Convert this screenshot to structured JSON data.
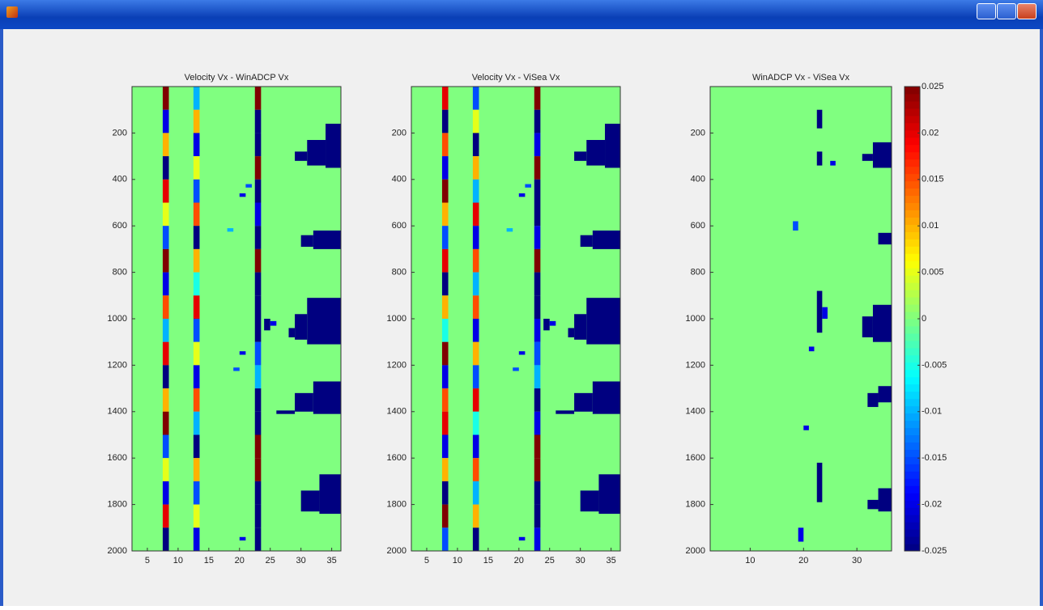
{
  "chart_data": [
    {
      "type": "heatmap",
      "title": "Velocity Vx - WinADCP Vx",
      "colormap": "jet",
      "background": 0,
      "xlim": [
        2.5,
        36.5
      ],
      "ylim": [
        0,
        2000
      ],
      "y_reversed": true,
      "xticks": [
        5,
        10,
        15,
        20,
        25,
        30,
        35
      ],
      "yticks": [
        200,
        400,
        600,
        800,
        1000,
        1200,
        1400,
        1600,
        1800,
        2000
      ],
      "stripes": [
        {
          "x": 8,
          "values": [
            0.025,
            -0.02,
            0.01,
            -0.025,
            0.02,
            0.005,
            -0.015,
            0.025,
            -0.02,
            0.015,
            -0.01,
            0.02,
            -0.025,
            0.01,
            0.025,
            -0.015,
            0.005,
            -0.02,
            0.02,
            -0.025
          ]
        },
        {
          "x": 13,
          "values": [
            -0.01,
            0.01,
            -0.02,
            0.005,
            -0.015,
            0.015,
            -0.025,
            0.01,
            -0.005,
            0.02,
            -0.015,
            0.005,
            -0.02,
            0.015,
            -0.01,
            -0.025,
            0.01,
            -0.015,
            0.005,
            -0.02
          ]
        },
        {
          "x": 23,
          "values": [
            0.025,
            -0.025,
            -0.025,
            0.025,
            -0.025,
            -0.02,
            -0.025,
            0.025,
            -0.025,
            -0.025,
            -0.025,
            -0.015,
            -0.01,
            -0.025,
            -0.025,
            0.025,
            0.025,
            -0.025,
            -0.025,
            -0.025
          ]
        }
      ],
      "regions": [
        {
          "x": [
            34,
            36.5
          ],
          "y": [
            160,
            350
          ],
          "value": -0.025
        },
        {
          "x": [
            31,
            34
          ],
          "y": [
            230,
            340
          ],
          "value": -0.025
        },
        {
          "x": [
            29,
            31
          ],
          "y": [
            280,
            320
          ],
          "value": -0.025
        },
        {
          "x": [
            32,
            36.5
          ],
          "y": [
            620,
            700
          ],
          "value": -0.025
        },
        {
          "x": [
            30,
            32
          ],
          "y": [
            640,
            690
          ],
          "value": -0.025
        },
        {
          "x": [
            31,
            36.5
          ],
          "y": [
            910,
            1110
          ],
          "value": -0.025
        },
        {
          "x": [
            29,
            31
          ],
          "y": [
            980,
            1090
          ],
          "value": -0.025
        },
        {
          "x": [
            28,
            29
          ],
          "y": [
            1040,
            1080
          ],
          "value": -0.025
        },
        {
          "x": [
            32,
            36.5
          ],
          "y": [
            1270,
            1410
          ],
          "value": -0.025
        },
        {
          "x": [
            29,
            32
          ],
          "y": [
            1320,
            1400
          ],
          "value": -0.025
        },
        {
          "x": [
            26,
            29
          ],
          "y": [
            1395,
            1410
          ],
          "value": -0.025
        },
        {
          "x": [
            33,
            36.5
          ],
          "y": [
            1670,
            1840
          ],
          "value": -0.025
        },
        {
          "x": [
            30,
            33
          ],
          "y": [
            1740,
            1830
          ],
          "value": -0.025
        },
        {
          "x": [
            20,
            21
          ],
          "y": [
            460,
            475
          ],
          "value": -0.02
        },
        {
          "x": [
            21,
            22
          ],
          "y": [
            420,
            435
          ],
          "value": -0.015
        },
        {
          "x": [
            18,
            19
          ],
          "y": [
            610,
            625
          ],
          "value": -0.01
        },
        {
          "x": [
            20,
            21
          ],
          "y": [
            1140,
            1155
          ],
          "value": -0.02
        },
        {
          "x": [
            19,
            20
          ],
          "y": [
            1210,
            1225
          ],
          "value": -0.015
        },
        {
          "x": [
            20,
            21
          ],
          "y": [
            1940,
            1955
          ],
          "value": -0.02
        },
        {
          "x": [
            24,
            25
          ],
          "y": [
            1000,
            1050
          ],
          "value": -0.025
        },
        {
          "x": [
            25,
            26
          ],
          "y": [
            1010,
            1030
          ],
          "value": -0.02
        }
      ]
    },
    {
      "type": "heatmap",
      "title": "Velocity Vx - ViSea Vx",
      "colormap": "jet",
      "background": 0,
      "xlim": [
        2.5,
        36.5
      ],
      "ylim": [
        0,
        2000
      ],
      "y_reversed": true,
      "xticks": [
        5,
        10,
        15,
        20,
        25,
        30,
        35
      ],
      "yticks": [
        200,
        400,
        600,
        800,
        1000,
        1200,
        1400,
        1600,
        1800,
        2000
      ],
      "stripes": [
        {
          "x": 8,
          "values": [
            0.02,
            -0.025,
            0.015,
            -0.02,
            0.025,
            0.01,
            -0.015,
            0.02,
            -0.025,
            0.01,
            -0.005,
            0.025,
            -0.02,
            0.015,
            0.02,
            -0.02,
            0.01,
            -0.025,
            0.025,
            -0.015
          ]
        },
        {
          "x": 13,
          "values": [
            -0.015,
            0.005,
            -0.025,
            0.01,
            -0.01,
            0.02,
            -0.02,
            0.015,
            -0.01,
            0.015,
            -0.02,
            0.01,
            -0.015,
            0.02,
            -0.005,
            -0.02,
            0.015,
            -0.01,
            0.01,
            -0.025
          ]
        },
        {
          "x": 23,
          "values": [
            0.025,
            -0.025,
            -0.02,
            0.025,
            -0.025,
            -0.025,
            -0.02,
            0.025,
            -0.025,
            -0.025,
            -0.02,
            -0.015,
            -0.01,
            -0.025,
            -0.02,
            0.025,
            0.025,
            -0.025,
            -0.025,
            -0.02
          ]
        }
      ],
      "regions": [
        {
          "x": [
            34,
            36.5
          ],
          "y": [
            160,
            350
          ],
          "value": -0.025
        },
        {
          "x": [
            31,
            34
          ],
          "y": [
            230,
            340
          ],
          "value": -0.025
        },
        {
          "x": [
            29,
            31
          ],
          "y": [
            280,
            320
          ],
          "value": -0.025
        },
        {
          "x": [
            32,
            36.5
          ],
          "y": [
            620,
            700
          ],
          "value": -0.025
        },
        {
          "x": [
            30,
            32
          ],
          "y": [
            640,
            690
          ],
          "value": -0.025
        },
        {
          "x": [
            31,
            36.5
          ],
          "y": [
            910,
            1110
          ],
          "value": -0.025
        },
        {
          "x": [
            29,
            31
          ],
          "y": [
            980,
            1090
          ],
          "value": -0.025
        },
        {
          "x": [
            28,
            29
          ],
          "y": [
            1040,
            1080
          ],
          "value": -0.025
        },
        {
          "x": [
            32,
            36.5
          ],
          "y": [
            1270,
            1410
          ],
          "value": -0.025
        },
        {
          "x": [
            29,
            32
          ],
          "y": [
            1320,
            1400
          ],
          "value": -0.025
        },
        {
          "x": [
            26,
            29
          ],
          "y": [
            1395,
            1410
          ],
          "value": -0.025
        },
        {
          "x": [
            33,
            36.5
          ],
          "y": [
            1670,
            1840
          ],
          "value": -0.025
        },
        {
          "x": [
            30,
            33
          ],
          "y": [
            1740,
            1830
          ],
          "value": -0.025
        },
        {
          "x": [
            20,
            21
          ],
          "y": [
            460,
            475
          ],
          "value": -0.02
        },
        {
          "x": [
            21,
            22
          ],
          "y": [
            420,
            435
          ],
          "value": -0.015
        },
        {
          "x": [
            18,
            19
          ],
          "y": [
            610,
            625
          ],
          "value": -0.01
        },
        {
          "x": [
            20,
            21
          ],
          "y": [
            1140,
            1155
          ],
          "value": -0.02
        },
        {
          "x": [
            19,
            20
          ],
          "y": [
            1210,
            1225
          ],
          "value": -0.015
        },
        {
          "x": [
            20,
            21
          ],
          "y": [
            1940,
            1955
          ],
          "value": -0.02
        },
        {
          "x": [
            24,
            25
          ],
          "y": [
            1000,
            1050
          ],
          "value": -0.025
        },
        {
          "x": [
            25,
            26
          ],
          "y": [
            1010,
            1030
          ],
          "value": -0.02
        }
      ]
    },
    {
      "type": "heatmap",
      "title": "WinADCP Vx - ViSea Vx",
      "colormap": "jet",
      "background": 0,
      "xlim": [
        2.5,
        36.5
      ],
      "ylim": [
        0,
        2000
      ],
      "y_reversed": true,
      "xticks": [
        10,
        20,
        30
      ],
      "yticks": [
        200,
        400,
        600,
        800,
        1000,
        1200,
        1400,
        1600,
        1800,
        2000
      ],
      "stripes": [],
      "regions": [
        {
          "x": [
            33,
            36.5
          ],
          "y": [
            240,
            350
          ],
          "value": -0.025
        },
        {
          "x": [
            31,
            33
          ],
          "y": [
            290,
            320
          ],
          "value": -0.025
        },
        {
          "x": [
            34,
            36.5
          ],
          "y": [
            630,
            680
          ],
          "value": -0.025
        },
        {
          "x": [
            33,
            36.5
          ],
          "y": [
            940,
            1100
          ],
          "value": -0.025
        },
        {
          "x": [
            31,
            33
          ],
          "y": [
            990,
            1080
          ],
          "value": -0.025
        },
        {
          "x": [
            34,
            36.5
          ],
          "y": [
            1290,
            1360
          ],
          "value": -0.025
        },
        {
          "x": [
            32,
            34
          ],
          "y": [
            1320,
            1380
          ],
          "value": -0.025
        },
        {
          "x": [
            34,
            36.5
          ],
          "y": [
            1730,
            1830
          ],
          "value": -0.025
        },
        {
          "x": [
            32,
            34
          ],
          "y": [
            1780,
            1820
          ],
          "value": -0.025
        },
        {
          "x": [
            22.5,
            23.5
          ],
          "y": [
            100,
            180
          ],
          "value": -0.025
        },
        {
          "x": [
            22.5,
            23.5
          ],
          "y": [
            280,
            340
          ],
          "value": -0.025
        },
        {
          "x": [
            22.5,
            23.5
          ],
          "y": [
            880,
            1060
          ],
          "value": -0.025
        },
        {
          "x": [
            22.5,
            23.5
          ],
          "y": [
            1620,
            1790
          ],
          "value": -0.025
        },
        {
          "x": [
            23.5,
            24.5
          ],
          "y": [
            950,
            1000
          ],
          "value": -0.02
        },
        {
          "x": [
            21,
            22
          ],
          "y": [
            1120,
            1140
          ],
          "value": -0.02
        },
        {
          "x": [
            19,
            20
          ],
          "y": [
            1900,
            1960
          ],
          "value": -0.02
        },
        {
          "x": [
            18,
            19
          ],
          "y": [
            580,
            620
          ],
          "value": -0.015
        },
        {
          "x": [
            20,
            21
          ],
          "y": [
            1460,
            1480
          ],
          "value": -0.02
        },
        {
          "x": [
            25,
            26
          ],
          "y": [
            320,
            340
          ],
          "value": -0.02
        }
      ],
      "colorbar": {
        "clim": [
          -0.025,
          0.025
        ],
        "ticks": [
          0.025,
          0.02,
          0.015,
          0.01,
          0.005,
          0,
          -0.005,
          -0.01,
          -0.015,
          -0.02,
          -0.025
        ]
      }
    }
  ]
}
